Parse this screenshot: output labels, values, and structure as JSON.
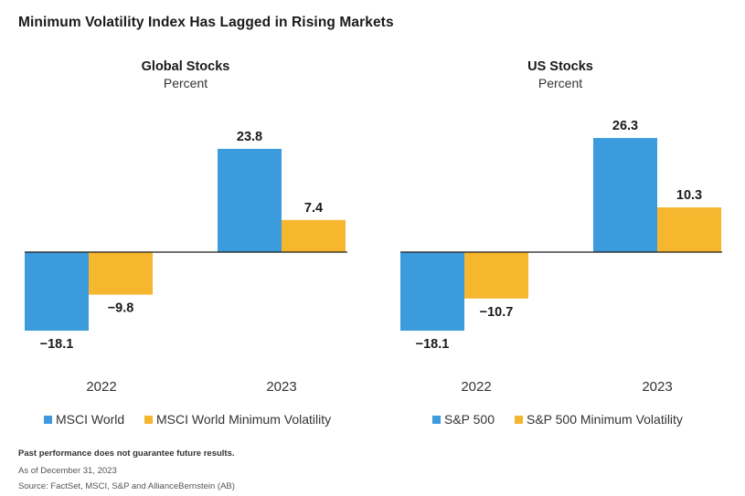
{
  "title": "Minimum Volatility Index Has Lagged in Rising Markets",
  "colors": {
    "series_a": "#3b9bdc",
    "series_b": "#f6b62e",
    "axis": "#1a1a1a"
  },
  "chart_data": [
    {
      "type": "bar",
      "title": "Global Stocks",
      "subtitle": "Percent",
      "categories": [
        "2022",
        "2023"
      ],
      "series": [
        {
          "name": "MSCI World",
          "values": [
            -18.1,
            23.8
          ],
          "labels": [
            "−18.1",
            "23.8"
          ]
        },
        {
          "name": "MSCI World Minimum Volatility",
          "values": [
            -9.8,
            7.4
          ],
          "labels": [
            "−9.8",
            "7.4"
          ]
        }
      ],
      "ylim": [
        -18.1,
        26.3
      ],
      "grid": false,
      "legend": "bottom"
    },
    {
      "type": "bar",
      "title": "US Stocks",
      "subtitle": "Percent",
      "categories": [
        "2022",
        "2023"
      ],
      "series": [
        {
          "name": "S&P 500",
          "values": [
            -18.1,
            26.3
          ],
          "labels": [
            "−18.1",
            "26.3"
          ]
        },
        {
          "name": "S&P 500 Minimum Volatility",
          "values": [
            -10.7,
            10.3
          ],
          "labels": [
            "−10.7",
            "10.3"
          ]
        }
      ],
      "ylim": [
        -18.1,
        26.3
      ],
      "grid": false,
      "legend": "bottom"
    }
  ],
  "footnotes": {
    "disclaimer": "Past performance does not guarantee future results.",
    "date": "As of December 31, 2023",
    "source": "Source: FactSet, MSCI, S&P and AllianceBernstein (AB)"
  }
}
